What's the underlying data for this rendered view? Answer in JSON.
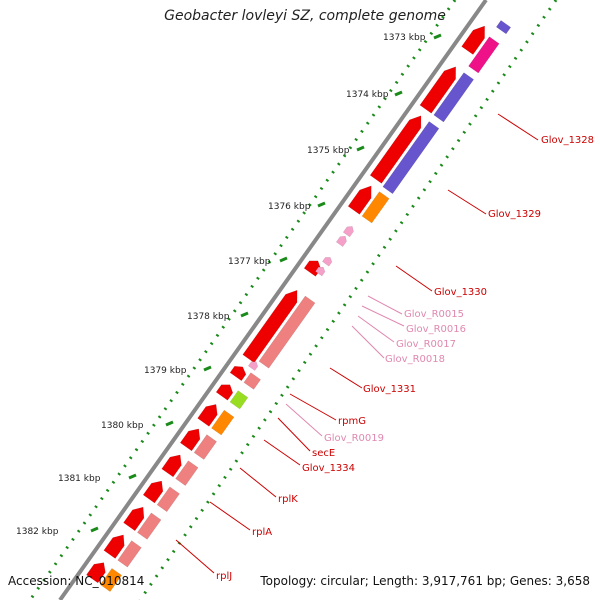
{
  "title": "Geobacter lovleyi SZ, complete genome",
  "footer": {
    "accession": "Accession: NC_010814",
    "summary": "Topology: circular; Length: 3,917,761 bp; Genes: 3,658"
  },
  "ticks": [
    "1373 kbp",
    "1374 kbp",
    "1375 kbp",
    "1376 kbp",
    "1377 kbp",
    "1378 kbp",
    "1379 kbp",
    "1380 kbp",
    "1381 kbp",
    "1382 kbp"
  ],
  "gene_labels": [
    {
      "text": "Glov_1328",
      "color": "#cc0000"
    },
    {
      "text": "Glov_1329",
      "color": "#cc0000"
    },
    {
      "text": "Glov_1330",
      "color": "#cc0000"
    },
    {
      "text": "Glov_R0015",
      "color": "#e088b0"
    },
    {
      "text": "Glov_R0016",
      "color": "#e088b0"
    },
    {
      "text": "Glov_R0017",
      "color": "#e088b0"
    },
    {
      "text": "Glov_R0018",
      "color": "#e088b0"
    },
    {
      "text": "Glov_1331",
      "color": "#cc0000"
    },
    {
      "text": "rpmG",
      "color": "#cc0000"
    },
    {
      "text": "Glov_R0019",
      "color": "#e088b0"
    },
    {
      "text": "secE",
      "color": "#cc0000"
    },
    {
      "text": "Glov_1334",
      "color": "#cc0000"
    },
    {
      "text": "rplK",
      "color": "#cc0000"
    },
    {
      "text": "rplA",
      "color": "#cc0000"
    },
    {
      "text": "rplJ",
      "color": "#cc0000"
    }
  ],
  "colors": {
    "cds": "#ee0000",
    "rrna_trna": "#f4a0c8",
    "cog_blue": "#6655cc",
    "cog_pink": "#ee1188",
    "cog_orange": "#ff8800",
    "cog_salmon": "#ee8080",
    "cog_green": "#99dd22",
    "backbone": "#888888",
    "tick": "#1a8a1a"
  }
}
